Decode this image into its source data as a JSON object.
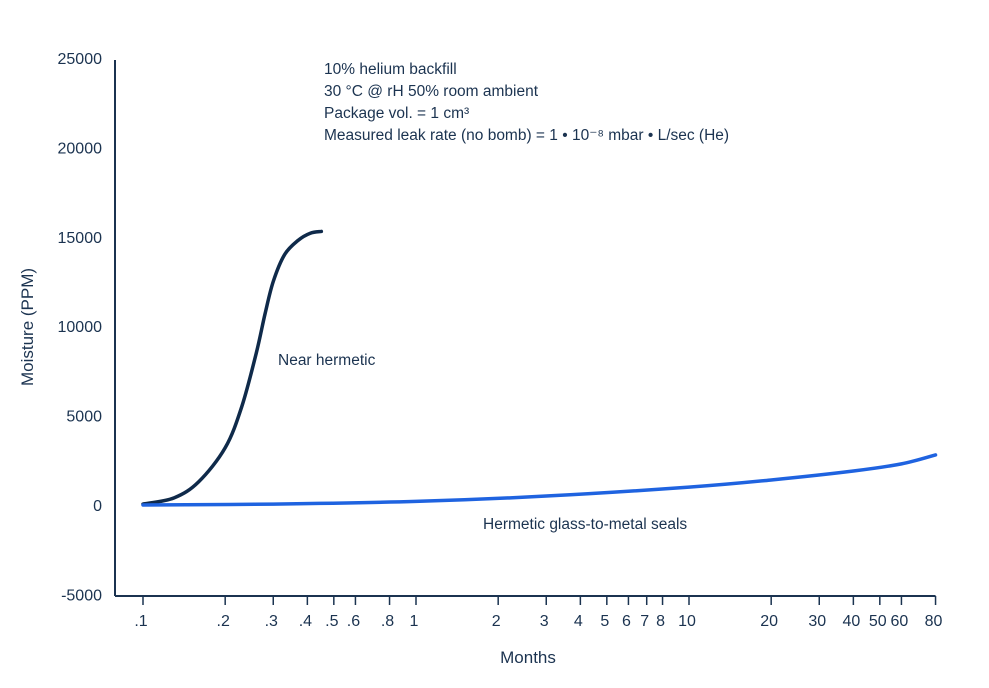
{
  "chart_data": {
    "type": "line",
    "title": "",
    "xlabel": "Months",
    "ylabel": "Moisture (PPM)",
    "xscale": "log",
    "xlim": [
      0.1,
      80
    ],
    "ylim": [
      -5000,
      25000
    ],
    "x_ticks": [
      0.1,
      0.2,
      0.3,
      0.4,
      0.5,
      0.6,
      0.8,
      1,
      2,
      3,
      4,
      5,
      6,
      7,
      8,
      10,
      20,
      30,
      40,
      50,
      60,
      80
    ],
    "x_tick_labels": [
      ".1",
      ".2",
      ".3",
      ".4",
      ".5",
      ".6",
      ".8",
      "1",
      "2",
      "3",
      "4",
      "5",
      "6",
      "7",
      "8",
      "10",
      "20",
      "30",
      "40",
      "50",
      "60",
      "80"
    ],
    "y_ticks": [
      -5000,
      0,
      5000,
      10000,
      15000,
      20000,
      25000
    ],
    "y_tick_labels": [
      "-5000",
      "0",
      "5000",
      "10000",
      "15000",
      "20000",
      "25000"
    ],
    "grid": false,
    "annotations": [
      "10% helium backfill",
      "30 °C @ rH 50% room ambient",
      "Package vol. = 1 cm³",
      "Measured leak rate (no bomb) = 1 • 10⁻⁸ mbar • L/sec (He)"
    ],
    "series": [
      {
        "name": "Near hermetic",
        "color": "#0f2a4a",
        "x": [
          0.1,
          0.13,
          0.16,
          0.2,
          0.23,
          0.26,
          0.28,
          0.3,
          0.33,
          0.37,
          0.41,
          0.45
        ],
        "y": [
          50,
          400,
          1300,
          3200,
          5500,
          8500,
          10700,
          12500,
          14000,
          14800,
          15200,
          15300
        ]
      },
      {
        "name": "Hermetic glass-to-metal seals",
        "color": "#1f63e0",
        "x": [
          0.1,
          0.3,
          1,
          3,
          10,
          20,
          40,
          60,
          80
        ],
        "y": [
          0,
          50,
          200,
          500,
          1000,
          1400,
          1900,
          2300,
          2800
        ]
      }
    ]
  }
}
